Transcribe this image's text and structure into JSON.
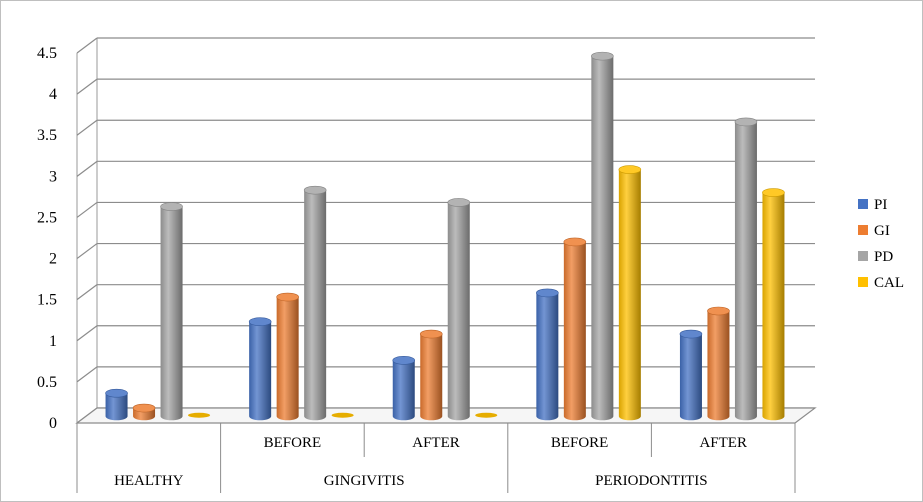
{
  "chart_data": {
    "type": "bar",
    "title": "",
    "xlabel": "",
    "ylabel": "",
    "ylim": [
      0,
      4.5
    ],
    "yticks": [
      "0",
      "0.5",
      "1",
      "1.5",
      "2",
      "2.5",
      "3",
      "3.5",
      "4",
      "4.5"
    ],
    "categories": [
      {
        "sub": "",
        "group": "HEALTHY"
      },
      {
        "sub": "BEFORE",
        "group": "GINGIVITIS"
      },
      {
        "sub": "AFTER",
        "group": "GINGIVITIS"
      },
      {
        "sub": "BEFORE",
        "group": "PERIODONTITIS"
      },
      {
        "sub": "AFTER",
        "group": "PERIODONTITIS"
      }
    ],
    "groups": [
      "HEALTHY",
      "GINGIVITIS",
      "PERIODONTITIS"
    ],
    "series": [
      {
        "name": "PI",
        "color": "#4472C4",
        "values": [
          0.28,
          1.15,
          0.68,
          1.5,
          1.0
        ]
      },
      {
        "name": "GI",
        "color": "#ED7D31",
        "values": [
          0.1,
          1.45,
          1.0,
          2.12,
          1.28
        ]
      },
      {
        "name": "PD",
        "color": "#A5A5A5",
        "values": [
          2.55,
          2.75,
          2.6,
          4.38,
          3.58
        ]
      },
      {
        "name": "CAL",
        "color": "#FFC000",
        "values": [
          0,
          0,
          0,
          3.0,
          2.72
        ]
      }
    ],
    "legend": "right",
    "grid": true
  }
}
